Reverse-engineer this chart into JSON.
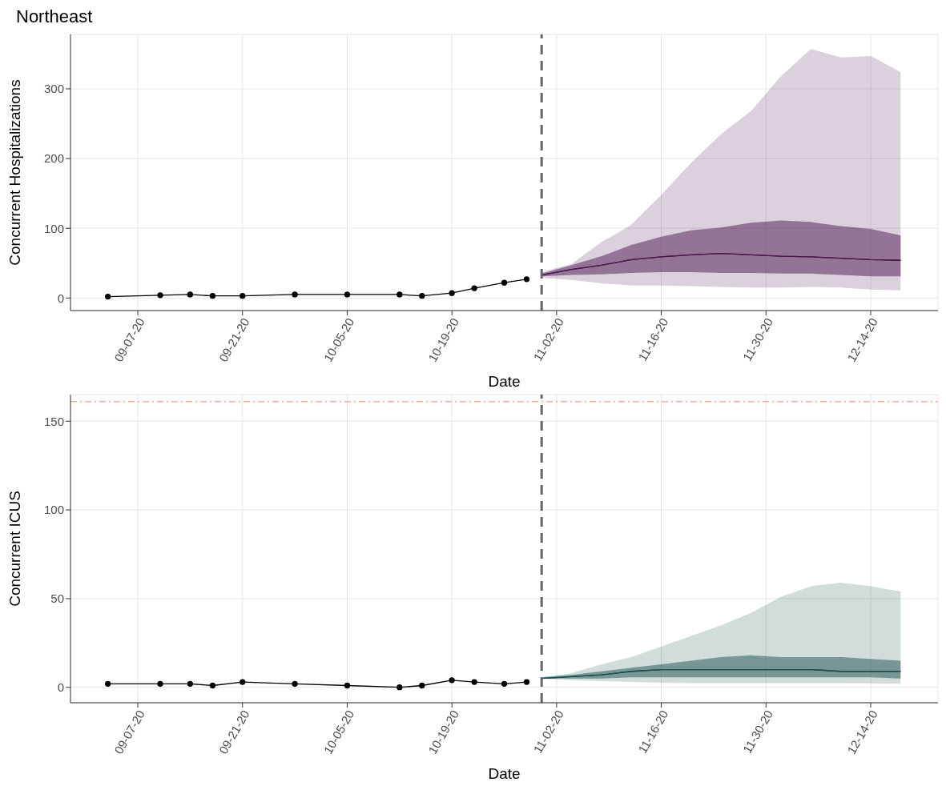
{
  "chart_data": [
    {
      "type": "line",
      "title": "Northeast",
      "xlabel": "Date",
      "ylabel": "Concurrent Hospitalizations",
      "xlim": [
        "--08-29",
        "--12-23"
      ],
      "ylim": [
        -18,
        378
      ],
      "yticks": [
        0,
        100,
        200,
        300
      ],
      "xticks": [
        {
          "value": "--09-07",
          "label": "09-07-20"
        },
        {
          "value": "--09-21",
          "label": "09-21-20"
        },
        {
          "value": "--10-05",
          "label": "10-05-20"
        },
        {
          "value": "--10-19",
          "label": "10-19-20"
        },
        {
          "value": "--11-02",
          "label": "11-02-20"
        },
        {
          "value": "--11-16",
          "label": "11-16-20"
        },
        {
          "value": "--11-30",
          "label": "11-30-20"
        },
        {
          "value": "--12-14",
          "label": "12-14-20"
        }
      ],
      "grid": true,
      "ref_lines": [
        {
          "axis": "x",
          "value": "--10-31",
          "color": "#666666",
          "line_style": "dashed"
        }
      ],
      "series": [
        {
          "color": "#000000",
          "marker": "circle",
          "x": [
            "--09-03",
            "--09-10",
            "--09-14",
            "--09-17",
            "--09-21",
            "--09-28",
            "--10-05",
            "--10-12",
            "--10-15",
            "--10-19",
            "--10-22",
            "--10-26",
            "--10-29"
          ],
          "values": [
            2,
            4,
            5,
            3,
            3,
            5,
            5,
            5,
            3,
            7,
            14,
            22,
            27
          ]
        },
        {
          "color": "#4a1a50",
          "marker": "none",
          "x": [
            "--10-31",
            "--11-04",
            "--11-08",
            "--11-12",
            "--11-16",
            "--11-20",
            "--11-24",
            "--11-28",
            "--12-02",
            "--12-06",
            "--12-10",
            "--12-14",
            "--12-18"
          ],
          "values": [
            33,
            41,
            47,
            55,
            59,
            62,
            64,
            62,
            60,
            59,
            57,
            55,
            54
          ],
          "lower": [
            29,
            26,
            21,
            18,
            18,
            17,
            16,
            15,
            15,
            16,
            15,
            12,
            11
          ],
          "upper": [
            37,
            49,
            80,
            105,
            148,
            194,
            235,
            268,
            318,
            357,
            345,
            347,
            324
          ]
        },
        {
          "color": "#4c1852",
          "marker": "none",
          "x": [
            "--10-31",
            "--11-04",
            "--11-08",
            "--11-12",
            "--11-16",
            "--11-20",
            "--11-24",
            "--11-28",
            "--12-02",
            "--12-06",
            "--12-10",
            "--12-14",
            "--12-18"
          ],
          "values": [
            33,
            41,
            47,
            55,
            59,
            62,
            64,
            62,
            60,
            59,
            57,
            55,
            54
          ],
          "lower": [
            31,
            33,
            34,
            36,
            37,
            37,
            36,
            36,
            35,
            35,
            33,
            31,
            31
          ],
          "upper": [
            35,
            47,
            60,
            76,
            88,
            97,
            101,
            108,
            111,
            109,
            103,
            99,
            90
          ]
        }
      ]
    },
    {
      "type": "line",
      "xlabel": "Date",
      "ylabel": "Concurrent ICUS",
      "xlim": [
        "--08-29",
        "--12-23"
      ],
      "ylim": [
        -8.7,
        165
      ],
      "yticks": [
        0,
        50,
        100,
        150
      ],
      "xticks": [
        {
          "value": "--09-07",
          "label": "09-07-20"
        },
        {
          "value": "--09-21",
          "label": "09-21-20"
        },
        {
          "value": "--10-05",
          "label": "10-05-20"
        },
        {
          "value": "--10-19",
          "label": "10-19-20"
        },
        {
          "value": "--11-02",
          "label": "11-02-20"
        },
        {
          "value": "--11-16",
          "label": "11-16-20"
        },
        {
          "value": "--11-30",
          "label": "11-30-20"
        },
        {
          "value": "--12-14",
          "label": "12-14-20"
        }
      ],
      "grid": true,
      "ref_lines": [
        {
          "axis": "x",
          "value": "--10-31",
          "color": "#666666",
          "line_style": "dashed"
        },
        {
          "axis": "y",
          "value": 161,
          "color": "#f08070",
          "line_style": "dashdot"
        }
      ],
      "series": [
        {
          "color": "#000000",
          "marker": "circle",
          "x": [
            "--09-03",
            "--09-10",
            "--09-14",
            "--09-17",
            "--09-21",
            "--09-28",
            "--10-05",
            "--10-12",
            "--10-15",
            "--10-19",
            "--10-22",
            "--10-26",
            "--10-29"
          ],
          "values": [
            2,
            2,
            2,
            1,
            3,
            2,
            1,
            0,
            1,
            4,
            3,
            2,
            3
          ]
        },
        {
          "color": "#1e4e4c",
          "marker": "none",
          "x": [
            "--10-31",
            "--11-04",
            "--11-08",
            "--11-12",
            "--11-16",
            "--11-20",
            "--11-24",
            "--11-28",
            "--12-02",
            "--12-06",
            "--12-10",
            "--12-14",
            "--12-18"
          ],
          "values": [
            5,
            6,
            7,
            9,
            10,
            10,
            10,
            10,
            10,
            10,
            9,
            9,
            9
          ],
          "lower": [
            5,
            4,
            3.5,
            3,
            2.6,
            2.4,
            2.4,
            2.4,
            2.4,
            2.4,
            2.4,
            2.2,
            2
          ],
          "upper": [
            5.6,
            8,
            13,
            17,
            23,
            29,
            35,
            42,
            51,
            57,
            59,
            57,
            54
          ]
        },
        {
          "color": "#1c504e",
          "marker": "none",
          "x": [
            "--10-31",
            "--11-04",
            "--11-08",
            "--11-12",
            "--11-16",
            "--11-20",
            "--11-24",
            "--11-28",
            "--12-02",
            "--12-06",
            "--12-10",
            "--12-14",
            "--12-18"
          ],
          "values": [
            5,
            6,
            7,
            9,
            10,
            10,
            10,
            10,
            10,
            10,
            9,
            9,
            9
          ],
          "lower": [
            5,
            5,
            5,
            5.6,
            5.6,
            5.6,
            5.6,
            5.6,
            5.6,
            5.6,
            5.6,
            5.6,
            5
          ],
          "upper": [
            5.6,
            7,
            9,
            11,
            13,
            15,
            17,
            18,
            17,
            17,
            17,
            16,
            15
          ]
        }
      ]
    }
  ]
}
